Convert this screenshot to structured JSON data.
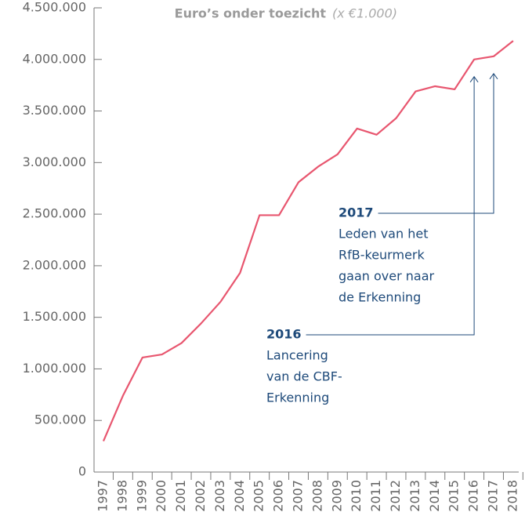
{
  "chart_data": {
    "type": "line",
    "title": "Euro’s onder toezicht",
    "subtitle": "(x €1.000)",
    "categories": [
      "1997",
      "1998",
      "1999",
      "2000",
      "2001",
      "2002",
      "2003",
      "2004",
      "2005",
      "2006",
      "2007",
      "2008",
      "2009",
      "2010",
      "2011",
      "2012",
      "2013",
      "2014",
      "2015",
      "2016",
      "2017",
      "2018"
    ],
    "series": [
      {
        "name": "Euro’s onder toezicht",
        "color": "#e8566f",
        "values": [
          300000,
          740000,
          1110000,
          1140000,
          1250000,
          1440000,
          1650000,
          1930000,
          2490000,
          2490000,
          2810000,
          2960000,
          3080000,
          3330000,
          3270000,
          3430000,
          3690000,
          3740000,
          3710000,
          4000000,
          4030000,
          4180000
        ]
      }
    ],
    "ylim": [
      0,
      4500000
    ],
    "yticks": [
      0,
      {
        "value": 500000,
        "label": "500.000"
      },
      {
        "value": 1000000,
        "label": "1.000.000"
      },
      {
        "value": 1500000,
        "label": "1.500.000"
      },
      {
        "value": 2000000,
        "label": "2.000.000"
      },
      {
        "value": 2500000,
        "label": "2.500.000"
      },
      {
        "value": 3000000,
        "label": "3.000.000"
      },
      {
        "value": 3500000,
        "label": "3.500.000"
      },
      {
        "value": 4000000,
        "label": "4.000.000"
      },
      {
        "value": 4500000,
        "label": "4.500.000"
      }
    ],
    "annotations": [
      {
        "label": "2017",
        "lines": [
          "Leden van het",
          "RfB-keurmerk",
          "gaan over naar",
          "de Erkenning"
        ]
      },
      {
        "label": "2016",
        "lines": [
          "Lancering",
          "van de CBF-",
          "Erkenning"
        ]
      }
    ]
  }
}
